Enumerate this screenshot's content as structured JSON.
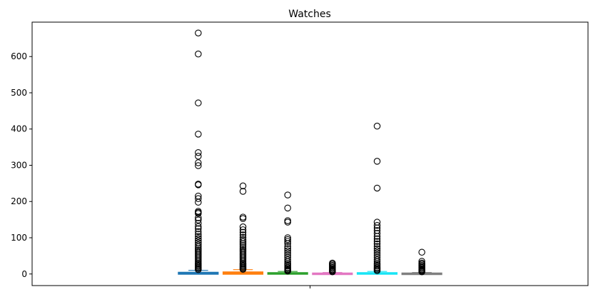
{
  "chart_data": {
    "type": "box",
    "title": "Watches",
    "xlabel": "",
    "ylabel": "",
    "ylim": [
      -32,
      695
    ],
    "yticks": [
      0,
      100,
      200,
      300,
      400,
      500,
      600
    ],
    "ytick_labels": [
      "0",
      "100",
      "200",
      "300",
      "400",
      "500",
      "600"
    ],
    "xticks": [
      ""
    ],
    "grid": false,
    "series": [
      {
        "color": "#1f77b4",
        "median": 1,
        "q1": 0,
        "q3": 4,
        "whisker_low": 0,
        "whisker_high": 10,
        "outliers": [
          665,
          607,
          472,
          386,
          335,
          325,
          307,
          299,
          248,
          246,
          215,
          208,
          198,
          173,
          170,
          167,
          155,
          149,
          140,
          131,
          125,
          117,
          110,
          104,
          98,
          92,
          86,
          80,
          75,
          70,
          66,
          62,
          58,
          54,
          50,
          46,
          42,
          38,
          34,
          30,
          27,
          24,
          21,
          18,
          15,
          12
        ]
      },
      {
        "color": "#ff7f0e",
        "median": 2,
        "q1": 0,
        "q3": 5,
        "whisker_low": 0,
        "whisker_high": 12,
        "outliers": [
          243,
          228,
          157,
          153,
          130,
          122,
          115,
          108,
          101,
          95,
          90,
          85,
          80,
          75,
          70,
          66,
          62,
          58,
          54,
          50,
          46,
          42,
          38,
          34,
          30,
          27,
          24,
          21,
          18,
          15,
          13
        ]
      },
      {
        "color": "#2ca02c",
        "median": 1,
        "q1": 0,
        "q3": 3,
        "whisker_low": 0,
        "whisker_high": 7,
        "outliers": [
          218,
          182,
          147,
          143,
          100,
          95,
          90,
          84,
          76,
          70,
          64,
          58,
          52,
          46,
          40,
          35,
          30,
          26,
          22,
          18,
          15,
          12,
          10,
          8
        ]
      },
      {
        "color": "#e377c2",
        "median": 1,
        "q1": 0,
        "q3": 2,
        "whisker_low": 0,
        "whisker_high": 4,
        "outliers": [
          30,
          27,
          24,
          21,
          18,
          15,
          12,
          10,
          8,
          6
        ]
      },
      {
        "color": "#17e5f5",
        "median": 1,
        "q1": 0,
        "q3": 3,
        "whisker_low": 0,
        "whisker_high": 7,
        "outliers": [
          408,
          311,
          237,
          143,
          134,
          127,
          120,
          112,
          104,
          97,
          90,
          83,
          76,
          70,
          64,
          58,
          52,
          46,
          40,
          35,
          30,
          26,
          22,
          18,
          15,
          12,
          9
        ]
      },
      {
        "color": "#7f7f7f",
        "median": 1,
        "q1": 0,
        "q3": 2,
        "whisker_low": 0,
        "whisker_high": 4,
        "outliers": [
          60,
          35,
          30,
          27,
          24,
          21,
          18,
          15,
          12,
          10,
          8,
          6
        ]
      }
    ]
  }
}
